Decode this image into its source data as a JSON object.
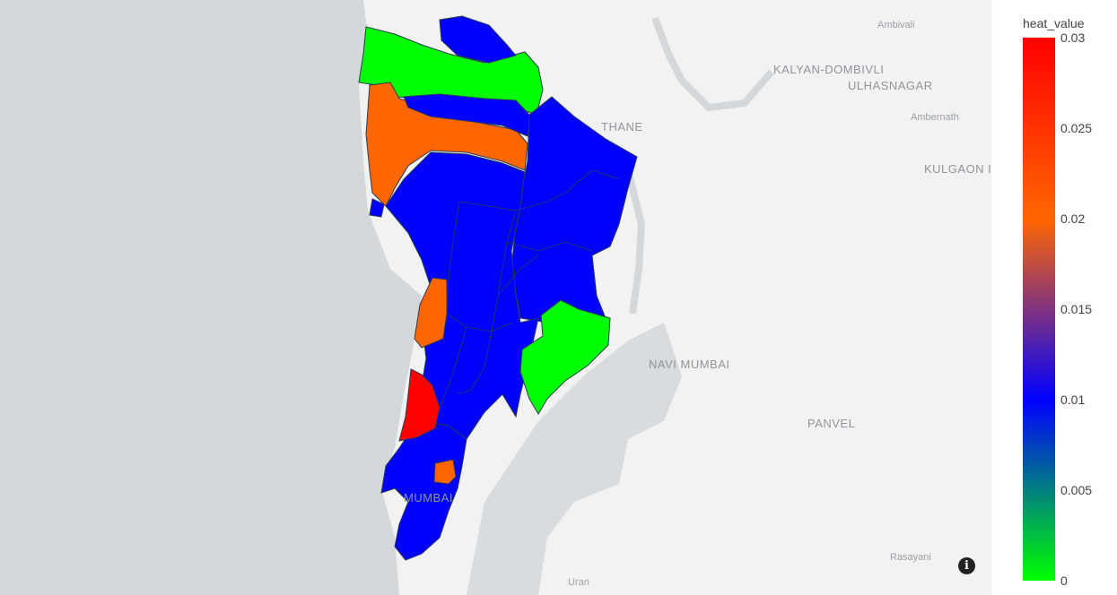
{
  "map": {
    "places": [
      {
        "name": "Ambivali",
        "size": "small"
      },
      {
        "name": "KALYAN-DOMBIVLI",
        "size": "big"
      },
      {
        "name": "ULHASNAGAR",
        "size": "big"
      },
      {
        "name": "Ambernath",
        "size": "small"
      },
      {
        "name": "THANE",
        "size": "big"
      },
      {
        "name": "KULGAON I",
        "size": "big"
      },
      {
        "name": "NAVI MUMBAI",
        "size": "big"
      },
      {
        "name": "PANVEL",
        "size": "big"
      },
      {
        "name": "MUMBAI",
        "size": "big"
      },
      {
        "name": "Rasayani",
        "size": "small"
      },
      {
        "name": "Uran",
        "size": "small"
      }
    ],
    "region_values": {
      "north_green": 0,
      "north_blue_top": 0.01,
      "orange_northwest": 0.02,
      "blue_strip": 0.01,
      "blue_east_big": 0.01,
      "blue_center": 0.01,
      "orange_midwest": 0.02,
      "green_east": 0,
      "red_south": 0.03,
      "orange_small_south": 0.02,
      "blue_south": 0.01
    },
    "colors": {
      "sea": "#d4d8db",
      "land": "#f2f2f2",
      "green": "#00ff00",
      "blue": "#0000ff",
      "orange": "#ff6600",
      "red": "#ff0000"
    }
  },
  "colorbar": {
    "title": "heat_value",
    "ticks": [
      "0.03",
      "0.025",
      "0.02",
      "0.015",
      "0.01",
      "0.005",
      "0"
    ],
    "min": 0,
    "max": 0.03
  },
  "info_icon": "i"
}
